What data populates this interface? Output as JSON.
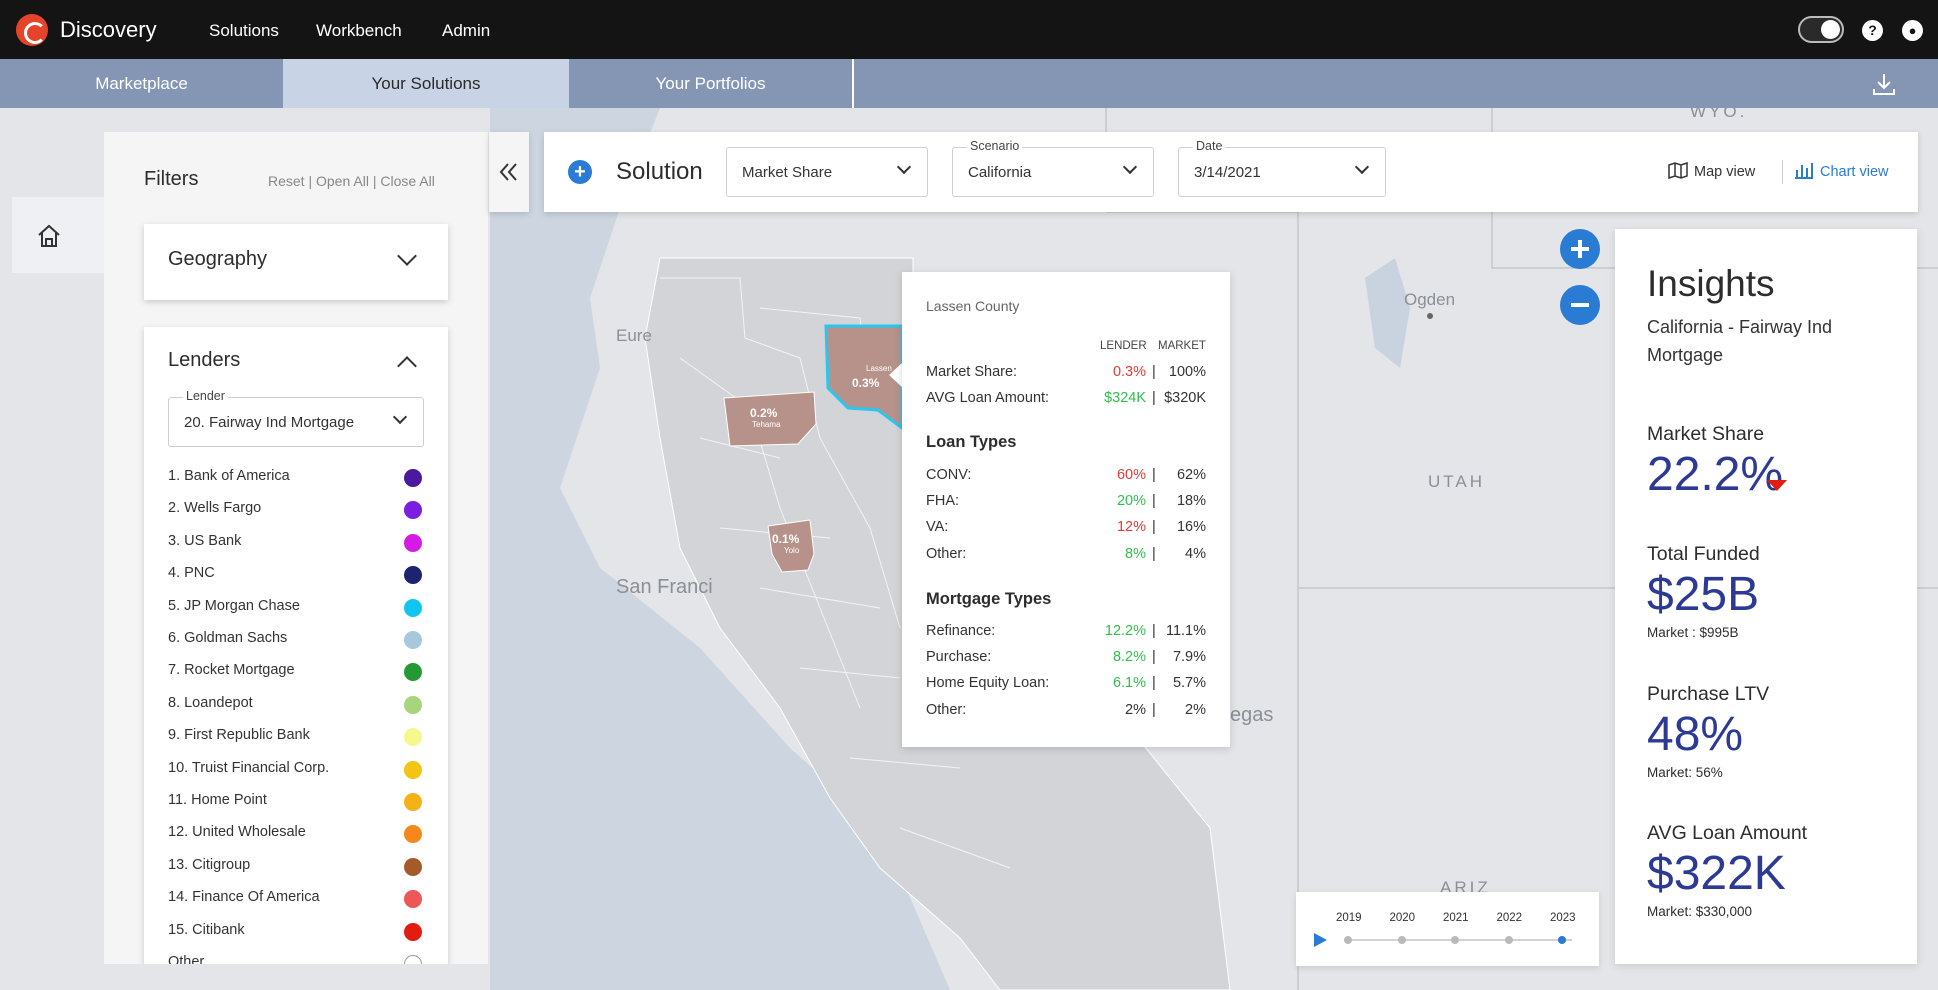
{
  "app": {
    "title": "Discovery"
  },
  "nav": {
    "items": [
      "Solutions",
      "Workbench",
      "Admin"
    ]
  },
  "tabs": {
    "items": [
      "Marketplace",
      "Your Solutions",
      "Your Portfolios"
    ],
    "active": "Your Solutions"
  },
  "filters": {
    "title": "Filters",
    "actions": [
      "Reset",
      "Open All",
      "Close All"
    ],
    "geography": {
      "label": "Geography"
    },
    "lenders": {
      "label": "Lenders",
      "select_label": "Lender",
      "select_value": "20. Fairway Ind Mortgage",
      "items": [
        {
          "label": "1. Bank of America",
          "color": "#4a1a9e"
        },
        {
          "label": "2. Wells Fargo",
          "color": "#7a1fe0"
        },
        {
          "label": "3. US Bank",
          "color": "#d41be3"
        },
        {
          "label": "4. PNC",
          "color": "#1c2470"
        },
        {
          "label": "5. JP Morgan Chase",
          "color": "#12c4f2"
        },
        {
          "label": "6. Goldman Sachs",
          "color": "#a7c9df"
        },
        {
          "label": "7. Rocket Mortgage",
          "color": "#239a33"
        },
        {
          "label": "8. Loandepot",
          "color": "#a6d67c"
        },
        {
          "label": "9. First Republic Bank",
          "color": "#f6f78c"
        },
        {
          "label": "10. Truist Financial Corp.",
          "color": "#f3c412"
        },
        {
          "label": "11. Home Point",
          "color": "#f3b318"
        },
        {
          "label": "12. United Wholesale",
          "color": "#f58818"
        },
        {
          "label": "13. Citigroup",
          "color": "#a65a29"
        },
        {
          "label": "14. Finance Of America",
          "color": "#ee5757"
        },
        {
          "label": "15. Citibank",
          "color": "#e21d10"
        },
        {
          "label": "Other",
          "color": "#ffffff"
        }
      ]
    }
  },
  "solution": {
    "title": "Solution",
    "metric_label": "Market Share",
    "scenario_label": "Scenario",
    "scenario_value": "California",
    "date_label": "Date",
    "date_value": "3/14/2021",
    "map_view": "Map view",
    "chart_view": "Chart view"
  },
  "tooltip": {
    "county": "Lassen County",
    "col_lender": "LENDER",
    "col_market": "MARKET",
    "rows": [
      {
        "label": "Market Share:",
        "lender": "0.3%",
        "market": "100%",
        "color": "red"
      },
      {
        "label": "AVG Loan Amount:",
        "lender": "$324K",
        "market": "$320K",
        "color": "green"
      }
    ],
    "loan_types": {
      "title": "Loan Types",
      "rows": [
        {
          "label": "CONV:",
          "lender": "60%",
          "market": "62%",
          "color": "red"
        },
        {
          "label": "FHA:",
          "lender": "20%",
          "market": "18%",
          "color": "green"
        },
        {
          "label": "VA:",
          "lender": "12%",
          "market": "16%",
          "color": "red"
        },
        {
          "label": "Other:",
          "lender": "8%",
          "market": "4%",
          "color": "green"
        }
      ]
    },
    "mortgage_types": {
      "title": "Mortgage Types",
      "rows": [
        {
          "label": "Refinance:",
          "lender": "12.2%",
          "market": "11.1%",
          "color": "green"
        },
        {
          "label": "Purchase:",
          "lender": "8.2%",
          "market": "7.9%",
          "color": "green"
        },
        {
          "label": "Home Equity Loan:",
          "lender": "6.1%",
          "market": "5.7%",
          "color": "green"
        },
        {
          "label": "Other:",
          "lender": "2%",
          "market": "2%",
          "color": "none"
        }
      ]
    }
  },
  "insights": {
    "title": "Insights",
    "subtitle_line1": "California - Fairway Ind",
    "subtitle_line2": "Mortgage",
    "market_share": {
      "label": "Market Share",
      "value": "22.2%"
    },
    "total_funded": {
      "label": "Total Funded",
      "value": "$25B",
      "sub": "Market : $995B"
    },
    "purchase_ltv": {
      "label": "Purchase LTV",
      "value": "48%",
      "sub": "Market: 56%"
    },
    "avg_loan": {
      "label": "AVG Loan Amount",
      "value": "$322K",
      "sub": "Market: $330,000"
    }
  },
  "map": {
    "labels": {
      "ogden": "Ogden",
      "utah": "UTAH",
      "eureka": "Eure",
      "sanfran": "San Franci",
      "vegas": "egas",
      "ariz": "ARIZ",
      "wyo": "WYO."
    },
    "regions": {
      "lassen_name": "Lassen",
      "lassen_val": "0.3%",
      "tehama_name": "Tehama",
      "tehama_val": "0.2%",
      "yolo_name": "Yolo",
      "yolo_val": "0.1%"
    }
  },
  "timeline": {
    "years": [
      "2019",
      "2020",
      "2021",
      "2022",
      "2023"
    ],
    "selected": "2023"
  }
}
